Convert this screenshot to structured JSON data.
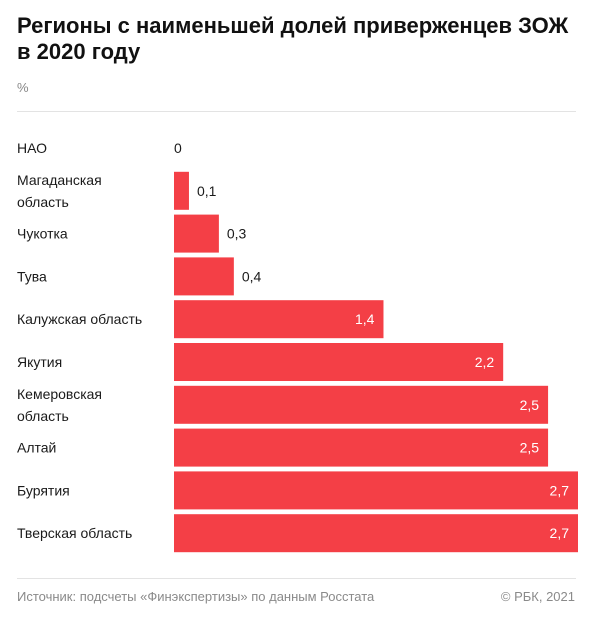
{
  "title": "Регионы с наименьшей долей приверженцев ЗОЖ в 2020 году",
  "unit": "%",
  "source": "Источник: подсчеты «Финэкспертизы» по данным Росстата",
  "copyright": "© РБК, 2021",
  "colors": {
    "bar": "#f43f46",
    "label_outside": "#1a1a1a",
    "label_inside": "#ffffff"
  },
  "chart_data": {
    "type": "bar",
    "orientation": "horizontal",
    "title": "Регионы с наименьшей долей приверженцев ЗОЖ в 2020 году",
    "ylabel": "%",
    "categories": [
      [
        "НАО"
      ],
      [
        "Магаданская",
        "область"
      ],
      [
        "Чукотка"
      ],
      [
        "Тува"
      ],
      [
        "Калужская область"
      ],
      [
        "Якутия"
      ],
      [
        "Кемеровская",
        "область"
      ],
      [
        "Алтай"
      ],
      [
        "Бурятия"
      ],
      [
        "Тверская область"
      ]
    ],
    "values": [
      0,
      0.1,
      0.3,
      0.4,
      1.4,
      2.2,
      2.5,
      2.5,
      2.7,
      2.7
    ],
    "value_labels": [
      "0",
      "0,1",
      "0,3",
      "0,4",
      "1,4",
      "2,2",
      "2,5",
      "2,5",
      "2,7",
      "2,7"
    ],
    "xlim": [
      0,
      2.7
    ],
    "grid": false,
    "legend": "none"
  }
}
